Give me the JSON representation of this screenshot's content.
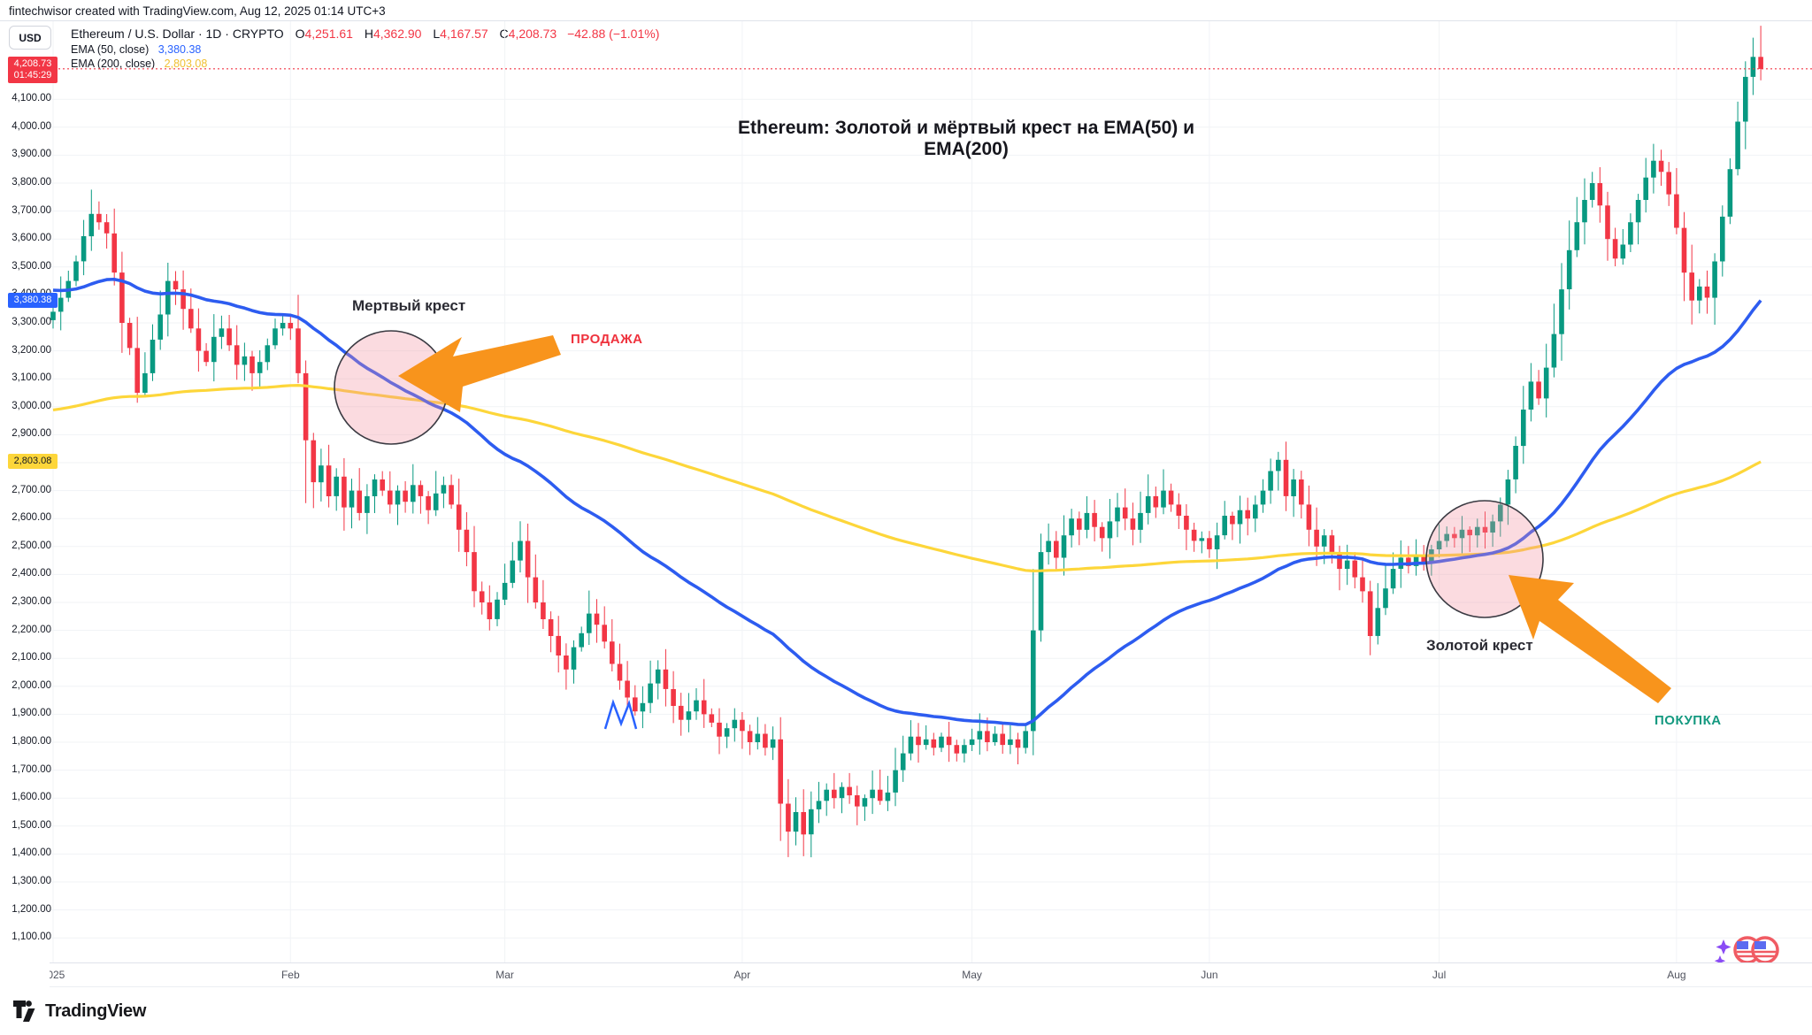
{
  "attribution": "fintechwisor created with TradingView.com, Aug 12, 2025 01:14 UTC+3",
  "currency_button": "USD",
  "symbol_header": {
    "name_full": "Ethereum / U.S. Dollar · 1D · CRYPTO",
    "o_label": "O",
    "o_value": "4,251.61",
    "h_label": "H",
    "h_value": "4,362.90",
    "l_label": "L",
    "l_value": "4,167.57",
    "c_label": "C",
    "c_value": "4,208.73",
    "change": "−42.88 (−1.01%)"
  },
  "indicators": [
    {
      "label": "EMA (50, close)",
      "value": "3,380.38",
      "color": "#2962ff"
    },
    {
      "label": "EMA (200, close)",
      "value": "2,803.08",
      "color": "#fdd63a"
    }
  ],
  "badges": {
    "last_price": {
      "price": "4,208.73",
      "countdown": "01:45:29",
      "bg": "#f23645"
    },
    "ema50": {
      "value": "3,380.38",
      "bg": "#2962ff"
    },
    "ema200": {
      "value": "2,803.08",
      "bg": "#fdd63a"
    }
  },
  "title": "Ethereum: Золотой и мёртвый крест на EMA(50) и EMA(200)",
  "annotations": {
    "death_cross": {
      "label": "Мертвый крест",
      "action": "ПРОДАЖА",
      "action_color": "#ef323d"
    },
    "golden_cross": {
      "label": "Золотой крест",
      "action": "ПОКУПКА",
      "action_color": "#149980"
    }
  },
  "logo_text": "TradingView",
  "chart_data": {
    "type": "candlestick",
    "symbol": "ETHUSD",
    "timeframe": "1D",
    "title": "Ethereum: Золотой и мёртвый крест на EMA(50) и EMA(200)",
    "start_date": "2025-01-01",
    "end_date": "2025-08-12",
    "grid": true,
    "price_axis": {
      "min": 1100,
      "max": 4100,
      "step": 100,
      "suffix": ".00"
    },
    "time_axis_months": [
      {
        "label": "2025",
        "day": 0
      },
      {
        "label": "Feb",
        "day": 31
      },
      {
        "label": "Mar",
        "day": 59
      },
      {
        "label": "Apr",
        "day": 90
      },
      {
        "label": "May",
        "day": 120
      },
      {
        "label": "Jun",
        "day": 151
      },
      {
        "label": "Jul",
        "day": 181
      },
      {
        "label": "Aug",
        "day": 212
      }
    ],
    "first_open": 3310,
    "closes": [
      3340,
      3390,
      3450,
      3520,
      3610,
      3690,
      3660,
      3620,
      3480,
      3300,
      3210,
      3050,
      3120,
      3240,
      3330,
      3450,
      3420,
      3350,
      3280,
      3200,
      3160,
      3250,
      3280,
      3220,
      3150,
      3180,
      3120,
      3160,
      3220,
      3280,
      3300,
      3280,
      3120,
      2880,
      2730,
      2790,
      2680,
      2750,
      2640,
      2700,
      2620,
      2680,
      2740,
      2700,
      2650,
      2700,
      2660,
      2720,
      2680,
      2630,
      2690,
      2720,
      2650,
      2560,
      2480,
      2340,
      2300,
      2240,
      2310,
      2370,
      2450,
      2520,
      2390,
      2300,
      2240,
      2180,
      2110,
      2060,
      2140,
      2190,
      2260,
      2220,
      2160,
      2080,
      2020,
      1960,
      1910,
      1940,
      2010,
      2060,
      1990,
      1930,
      1880,
      1910,
      1950,
      1900,
      1870,
      1820,
      1850,
      1880,
      1840,
      1800,
      1830,
      1780,
      1810,
      1580,
      1480,
      1550,
      1470,
      1560,
      1590,
      1630,
      1600,
      1640,
      1610,
      1570,
      1600,
      1630,
      1590,
      1620,
      1700,
      1760,
      1820,
      1790,
      1810,
      1780,
      1820,
      1790,
      1760,
      1790,
      1810,
      1840,
      1800,
      1830,
      1790,
      1810,
      1780,
      1840,
      2200,
      2480,
      2520,
      2460,
      2540,
      2600,
      2560,
      2620,
      2570,
      2530,
      2590,
      2640,
      2600,
      2560,
      2620,
      2680,
      2640,
      2700,
      2650,
      2610,
      2560,
      2520,
      2530,
      2490,
      2540,
      2610,
      2580,
      2630,
      2600,
      2650,
      2700,
      2770,
      2810,
      2680,
      2740,
      2650,
      2560,
      2500,
      2540,
      2480,
      2420,
      2450,
      2390,
      2340,
      2180,
      2280,
      2350,
      2420,
      2460,
      2430,
      2470,
      2440,
      2490,
      2520,
      2545,
      2530,
      2560,
      2540,
      2570,
      2550,
      2590,
      2650,
      2740,
      2860,
      2990,
      3090,
      3030,
      3140,
      3260,
      3420,
      3560,
      3660,
      3740,
      3800,
      3720,
      3600,
      3530,
      3580,
      3660,
      3740,
      3820,
      3880,
      3840,
      3760,
      3640,
      3480,
      3380,
      3430,
      3390,
      3520,
      3680,
      3850,
      4020,
      4180,
      4251.61,
      4208.73
    ],
    "special_lows": {
      "33": 2655,
      "98": 1392,
      "172": 2111
    },
    "last_candle": {
      "open": 4251.61,
      "high": 4362.9,
      "low": 4167.57,
      "close": 4208.73
    },
    "overlays": [
      {
        "name": "EMA50",
        "period": 50,
        "seed": 3420,
        "last": 3380.38,
        "color": "#2d5cf0"
      },
      {
        "name": "EMA200",
        "period": 200,
        "seed": 2985,
        "last": 2803.08,
        "color": "#fdd63a"
      }
    ],
    "events": [
      {
        "type": "death-cross",
        "approx_date": "2025-02-14",
        "price": 3060,
        "label": "Мертвый крест",
        "signal": "ПРОДАЖА"
      },
      {
        "type": "golden-cross",
        "approx_date": "2025-07-07",
        "price": 2465,
        "label": "Золотой крест",
        "signal": "ПОКУПКА"
      }
    ],
    "colors": {
      "up": "#089981",
      "down": "#f23645",
      "ema50": "#2d5cf0",
      "ema200": "#fdd63a",
      "last_price_line": "#f23645"
    }
  }
}
